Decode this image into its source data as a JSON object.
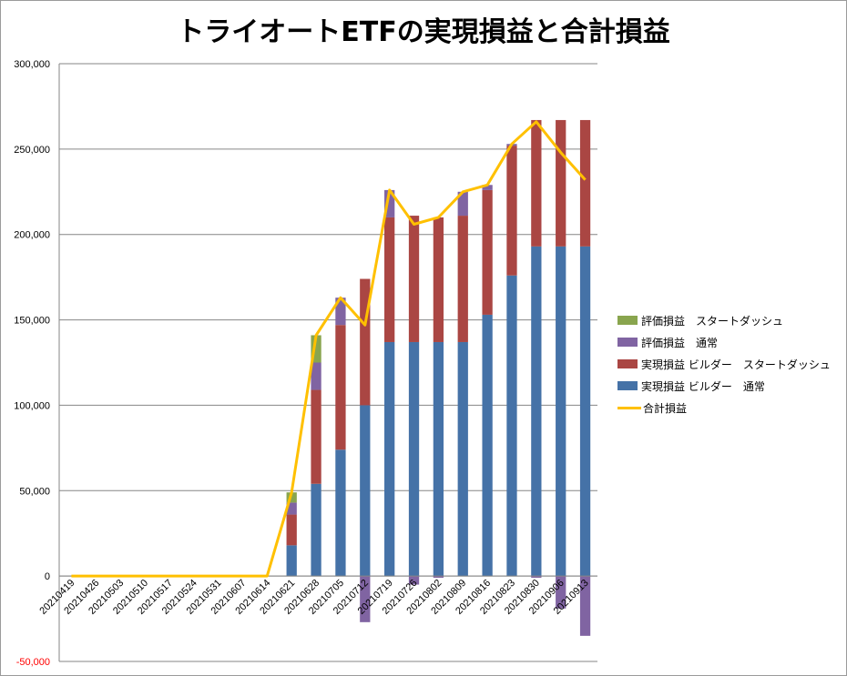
{
  "chart_data": {
    "type": "bar",
    "stacked": true,
    "title": "トライオートETFの実現損益と合計損益",
    "categories": [
      "20210419",
      "20210426",
      "20210503",
      "20210510",
      "20210517",
      "20210524",
      "20210531",
      "20210607",
      "20210614",
      "20210621",
      "20210628",
      "20210705",
      "20210712",
      "20210719",
      "20210726",
      "20210802",
      "20210809",
      "20210816",
      "20210823",
      "20210830",
      "20210906",
      "20210913"
    ],
    "y_ticks": [
      "300,000",
      "250,000",
      "200,000",
      "150,000",
      "100,000",
      "50,000",
      "0",
      "-50,000"
    ],
    "y_tick_values": [
      300000,
      250000,
      200000,
      150000,
      100000,
      50000,
      0,
      -50000
    ],
    "ylim": [
      -50000,
      300000
    ],
    "grid": true,
    "legend_position": "right",
    "series": [
      {
        "name": "実現損益 ビルダー　通常",
        "kind": "bar",
        "color": "#4572A7",
        "values": [
          0,
          0,
          0,
          0,
          0,
          0,
          0,
          0,
          0,
          18000,
          54000,
          74000,
          100000,
          137000,
          137000,
          137000,
          137000,
          153000,
          176000,
          193000,
          193000,
          193000
        ]
      },
      {
        "name": "実現損益 ビルダー　スタートダッシュ",
        "kind": "bar",
        "color": "#AA4643",
        "values": [
          0,
          0,
          0,
          0,
          0,
          0,
          0,
          0,
          0,
          18000,
          55000,
          73000,
          74000,
          73000,
          74000,
          73000,
          74000,
          73000,
          76000,
          74000,
          74000,
          74000
        ]
      },
      {
        "name": "評価損益　通常",
        "kind": "bar",
        "color": "#8064A2",
        "values": [
          0,
          0,
          0,
          0,
          0,
          0,
          0,
          0,
          0,
          7000,
          16000,
          16000,
          -27000,
          16000,
          -5000,
          -1000,
          14000,
          3000,
          1000,
          -1000,
          -19000,
          -35000
        ]
      },
      {
        "name": "評価損益　スタートダッシュ",
        "kind": "bar",
        "color": "#89A54E",
        "values": [
          0,
          0,
          0,
          0,
          0,
          0,
          0,
          0,
          0,
          6000,
          16000,
          0,
          0,
          0,
          0,
          0,
          0,
          0,
          0,
          0,
          0,
          0
        ]
      },
      {
        "name": "合計損益",
        "kind": "line",
        "color": "#FFC000",
        "values": [
          0,
          0,
          0,
          0,
          0,
          0,
          0,
          0,
          0,
          49000,
          141000,
          163000,
          147000,
          226000,
          206000,
          210000,
          225000,
          229000,
          253000,
          266000,
          248000,
          232000
        ]
      }
    ]
  },
  "legend": [
    {
      "label": "評価損益　スタートダッシュ",
      "color": "#89A54E",
      "type": "bar"
    },
    {
      "label": "評価損益　通常",
      "color": "#8064A2",
      "type": "bar"
    },
    {
      "label": "実現損益 ビルダー　スタートダッシュ",
      "color": "#AA4643",
      "type": "bar"
    },
    {
      "label": "実現損益 ビルダー　通常",
      "color": "#4572A7",
      "type": "bar"
    },
    {
      "label": "合計損益",
      "color": "#FFC000",
      "type": "line"
    }
  ]
}
